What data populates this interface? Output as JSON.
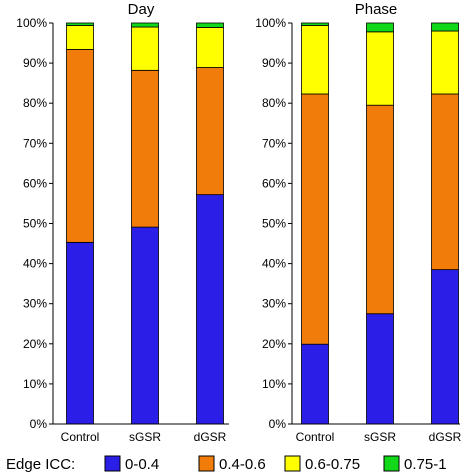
{
  "chart_data": [
    {
      "type": "bar",
      "stacked": true,
      "percent": true,
      "title": "Day",
      "categories": [
        "Control",
        "sGSR",
        "dGSR"
      ],
      "series": [
        {
          "name": "0-0.4",
          "color": "#2b1ee6",
          "values": [
            45.3,
            49.1,
            57.2
          ]
        },
        {
          "name": "0.4-0.6",
          "color": "#f27c0a",
          "values": [
            48.1,
            39.1,
            31.7
          ]
        },
        {
          "name": "0.6-0.75",
          "color": "#ffff00",
          "values": [
            6.0,
            10.8,
            10.0
          ]
        },
        {
          "name": "0.75-1",
          "color": "#12d81a",
          "values": [
            0.6,
            1.0,
            1.1
          ]
        }
      ],
      "yticks": [
        "0%",
        "10%",
        "20%",
        "30%",
        "40%",
        "50%",
        "60%",
        "70%",
        "80%",
        "90%",
        "100%"
      ],
      "ylim": [
        0,
        100
      ]
    },
    {
      "type": "bar",
      "stacked": true,
      "percent": true,
      "title": "Phase",
      "categories": [
        "Control",
        "sGSR",
        "dGSR"
      ],
      "series": [
        {
          "name": "0-0.4",
          "color": "#2b1ee6",
          "values": [
            19.9,
            27.5,
            38.5
          ]
        },
        {
          "name": "0.4-0.6",
          "color": "#f27c0a",
          "values": [
            62.4,
            52.0,
            43.8
          ]
        },
        {
          "name": "0.6-0.75",
          "color": "#ffff00",
          "values": [
            17.1,
            18.3,
            15.7
          ]
        },
        {
          "name": "0.75-1",
          "color": "#12d81a",
          "values": [
            0.6,
            2.2,
            2.0
          ]
        }
      ],
      "yticks": [
        "0%",
        "10%",
        "20%",
        "30%",
        "40%",
        "50%",
        "60%",
        "70%",
        "80%",
        "90%",
        "100%"
      ],
      "ylim": [
        0,
        100
      ]
    }
  ],
  "legend": {
    "title": "Edge ICC:",
    "items": [
      {
        "label": "0-0.4",
        "color": "#2b1ee6"
      },
      {
        "label": "0.4-0.6",
        "color": "#f27c0a"
      },
      {
        "label": "0.6-0.75",
        "color": "#ffff00"
      },
      {
        "label": "0.75-1",
        "color": "#12d81a"
      }
    ]
  }
}
